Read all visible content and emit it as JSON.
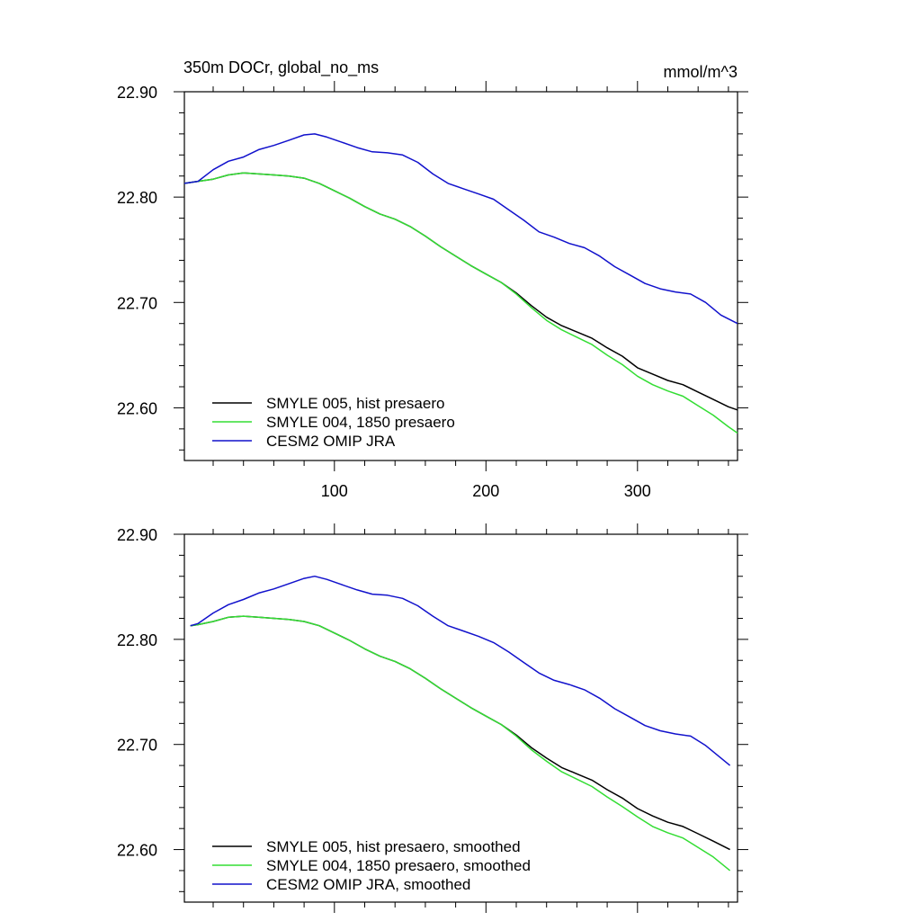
{
  "chart_data": [
    {
      "type": "line",
      "title": "350m DOCr, global_no_ms",
      "units": "mmol/m^3",
      "xlabel": "",
      "ylabel": "",
      "xlim": [
        1,
        366
      ],
      "ylim": [
        22.55,
        22.9
      ],
      "x_ticks": [
        "100",
        "200",
        "300"
      ],
      "y_ticks": [
        "22.60",
        "22.70",
        "22.80",
        "22.90"
      ],
      "grid": false,
      "legend_position": "bottom-left",
      "series": [
        {
          "name": "SMYLE 005, hist presaero",
          "color": "#000000",
          "x": [
            1,
            10,
            20,
            30,
            40,
            50,
            60,
            70,
            80,
            90,
            100,
            110,
            120,
            130,
            140,
            150,
            160,
            170,
            180,
            190,
            200,
            210,
            220,
            230,
            240,
            250,
            260,
            270,
            280,
            290,
            300,
            310,
            320,
            330,
            340,
            350,
            360,
            366
          ],
          "y": [
            22.813,
            22.815,
            22.817,
            22.821,
            22.823,
            22.822,
            22.821,
            22.82,
            22.818,
            22.813,
            22.806,
            22.799,
            22.791,
            22.784,
            22.779,
            22.772,
            22.763,
            22.753,
            22.744,
            22.735,
            22.727,
            22.719,
            22.709,
            22.697,
            22.686,
            22.678,
            22.672,
            22.666,
            22.657,
            22.649,
            22.638,
            22.632,
            22.626,
            22.622,
            22.615,
            22.608,
            22.601,
            22.598
          ]
        },
        {
          "name": "SMYLE 004, 1850 presaero",
          "color": "#33dd33",
          "x": [
            1,
            10,
            20,
            30,
            40,
            50,
            60,
            70,
            80,
            90,
            100,
            110,
            120,
            130,
            140,
            150,
            160,
            170,
            180,
            190,
            200,
            210,
            220,
            230,
            240,
            250,
            260,
            270,
            280,
            290,
            300,
            310,
            320,
            330,
            340,
            350,
            360,
            366
          ],
          "y": [
            22.813,
            22.815,
            22.817,
            22.821,
            22.823,
            22.822,
            22.821,
            22.82,
            22.818,
            22.813,
            22.806,
            22.799,
            22.791,
            22.784,
            22.779,
            22.772,
            22.763,
            22.753,
            22.744,
            22.735,
            22.727,
            22.719,
            22.708,
            22.695,
            22.683,
            22.674,
            22.667,
            22.66,
            22.65,
            22.641,
            22.63,
            22.622,
            22.616,
            22.611,
            22.602,
            22.593,
            22.582,
            22.576
          ]
        },
        {
          "name": "CESM2 OMIP JRA",
          "color": "#1111cc",
          "x": [
            1,
            10,
            20,
            30,
            40,
            50,
            60,
            70,
            80,
            87,
            95,
            105,
            115,
            125,
            135,
            145,
            155,
            165,
            175,
            185,
            195,
            205,
            215,
            225,
            235,
            245,
            255,
            265,
            275,
            285,
            295,
            305,
            315,
            325,
            335,
            345,
            355,
            366
          ],
          "y": [
            22.813,
            22.815,
            22.826,
            22.834,
            22.838,
            22.845,
            22.849,
            22.854,
            22.859,
            22.86,
            22.857,
            22.852,
            22.847,
            22.843,
            22.842,
            22.84,
            22.833,
            22.822,
            22.813,
            22.808,
            22.803,
            22.798,
            22.788,
            22.778,
            22.767,
            22.762,
            22.756,
            22.752,
            22.744,
            22.734,
            22.726,
            22.718,
            22.713,
            22.71,
            22.708,
            22.7,
            22.688,
            22.68
          ]
        }
      ]
    },
    {
      "type": "line",
      "title": "",
      "xlabel": "",
      "ylabel": "",
      "xlim": [
        1,
        366
      ],
      "ylim": [
        22.55,
        22.9
      ],
      "y_ticks": [
        "22.60",
        "22.70",
        "22.80",
        "22.90"
      ],
      "grid": false,
      "legend_position": "bottom-left",
      "series": [
        {
          "name": "SMYLE 005, hist presaero, smoothed",
          "color": "#000000",
          "x": [
            5,
            10,
            20,
            30,
            40,
            50,
            60,
            70,
            80,
            90,
            100,
            110,
            120,
            130,
            140,
            150,
            160,
            170,
            180,
            190,
            200,
            210,
            220,
            230,
            240,
            250,
            260,
            270,
            280,
            290,
            300,
            310,
            320,
            330,
            340,
            350,
            361
          ],
          "y": [
            22.813,
            22.814,
            22.817,
            22.821,
            22.822,
            22.821,
            22.82,
            22.819,
            22.817,
            22.813,
            22.806,
            22.799,
            22.791,
            22.784,
            22.779,
            22.772,
            22.763,
            22.753,
            22.744,
            22.735,
            22.727,
            22.719,
            22.709,
            22.697,
            22.687,
            22.678,
            22.672,
            22.666,
            22.657,
            22.649,
            22.639,
            22.632,
            22.626,
            22.622,
            22.615,
            22.608,
            22.6
          ]
        },
        {
          "name": "SMYLE 004, 1850 presaero, smoothed",
          "color": "#33dd33",
          "x": [
            5,
            10,
            20,
            30,
            40,
            50,
            60,
            70,
            80,
            90,
            100,
            110,
            120,
            130,
            140,
            150,
            160,
            170,
            180,
            190,
            200,
            210,
            220,
            230,
            240,
            250,
            260,
            270,
            280,
            290,
            300,
            310,
            320,
            330,
            340,
            350,
            361
          ],
          "y": [
            22.813,
            22.814,
            22.817,
            22.821,
            22.822,
            22.821,
            22.82,
            22.819,
            22.817,
            22.813,
            22.806,
            22.799,
            22.791,
            22.784,
            22.779,
            22.772,
            22.763,
            22.753,
            22.744,
            22.735,
            22.727,
            22.719,
            22.708,
            22.695,
            22.684,
            22.674,
            22.667,
            22.66,
            22.65,
            22.641,
            22.631,
            22.622,
            22.616,
            22.611,
            22.602,
            22.593,
            22.58
          ]
        },
        {
          "name": "CESM2 OMIP JRA, smoothed",
          "color": "#1111cc",
          "x": [
            5,
            10,
            20,
            30,
            40,
            50,
            60,
            70,
            80,
            87,
            95,
            105,
            115,
            125,
            135,
            145,
            155,
            165,
            175,
            185,
            195,
            205,
            215,
            225,
            235,
            245,
            255,
            265,
            275,
            285,
            295,
            305,
            315,
            325,
            335,
            345,
            361
          ],
          "y": [
            22.813,
            22.815,
            22.825,
            22.833,
            22.838,
            22.844,
            22.848,
            22.853,
            22.858,
            22.86,
            22.857,
            22.852,
            22.847,
            22.843,
            22.842,
            22.839,
            22.832,
            22.822,
            22.813,
            22.808,
            22.803,
            22.797,
            22.788,
            22.778,
            22.768,
            22.761,
            22.757,
            22.752,
            22.744,
            22.734,
            22.726,
            22.718,
            22.713,
            22.71,
            22.708,
            22.699,
            22.68
          ]
        }
      ]
    }
  ]
}
